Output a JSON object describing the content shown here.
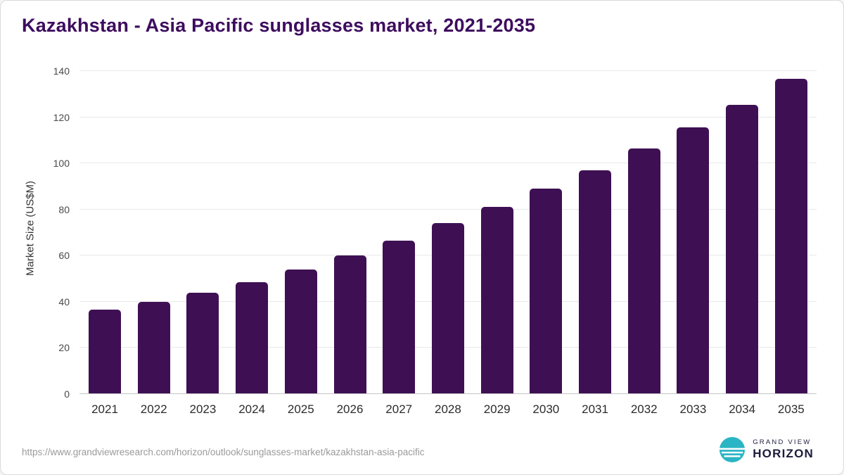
{
  "chart_data": {
    "type": "bar",
    "title": "Kazakhstan - Asia Pacific sunglasses market, 2021-2035",
    "categories": [
      "2021",
      "2022",
      "2023",
      "2024",
      "2025",
      "2026",
      "2027",
      "2028",
      "2029",
      "2030",
      "2031",
      "2032",
      "2033",
      "2034",
      "2035"
    ],
    "values": [
      36.5,
      40,
      44,
      48.5,
      54,
      60,
      66.5,
      74,
      81,
      89,
      97,
      106.5,
      115.5,
      125.5,
      136.5
    ],
    "xlabel": "",
    "ylabel": "Market Size (US$M)",
    "ylim": [
      0,
      140
    ],
    "yticks": [
      0,
      20,
      40,
      60,
      80,
      100,
      120,
      140
    ],
    "grid": true,
    "legend_position": "none",
    "bar_color": "#3e1053"
  },
  "colors": {
    "title": "#3d0c5e",
    "bar": "#3e1053",
    "gridline": "#e8e8e8",
    "logo_teal": "#2ab5c4",
    "logo_navy": "#1c1c3c"
  },
  "footer": {
    "source_url": "https://www.grandviewresearch.com/horizon/outlook/sunglasses-market/kazakhstan-asia-pacific",
    "logo": {
      "top": "GRAND VIEW",
      "bottom": "HORIZON"
    }
  }
}
